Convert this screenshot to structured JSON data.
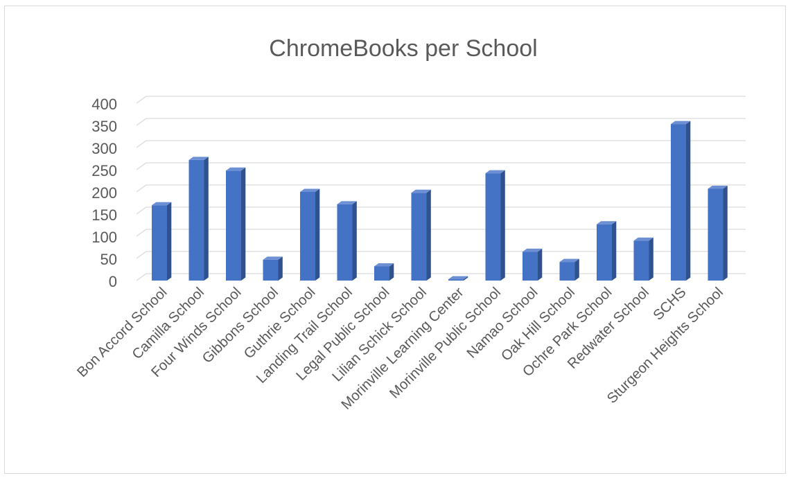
{
  "chart_data": {
    "type": "bar",
    "title": "ChromeBooks per School",
    "xlabel": "",
    "ylabel": "",
    "ylim": [
      0,
      400
    ],
    "yticks": [
      0,
      50,
      100,
      150,
      200,
      250,
      300,
      350,
      400
    ],
    "grid": true,
    "legend": "none",
    "style": "3d-column",
    "categories": [
      "Bon Accord School",
      "Camilla School",
      "Four Winds School",
      "Gibbons School",
      "Guthrie School",
      "Landing Trail School",
      "Legal Public School",
      "Lilian Schick School",
      "Morinville Learning Center",
      "Morinville Public School",
      "Namao School",
      "Oak Hill School",
      "Ochre Park School",
      "Redwater School",
      "SCHS",
      "Sturgeon Heights School"
    ],
    "values": [
      170,
      272,
      248,
      47,
      200,
      172,
      32,
      198,
      3,
      242,
      65,
      42,
      127,
      90,
      353,
      207
    ],
    "colors": {
      "bar_front": "#4472c4",
      "bar_side": "#2f528f",
      "bar_top": "#6d8fd3",
      "grid": "#d9d9d9",
      "text": "#595959"
    }
  }
}
